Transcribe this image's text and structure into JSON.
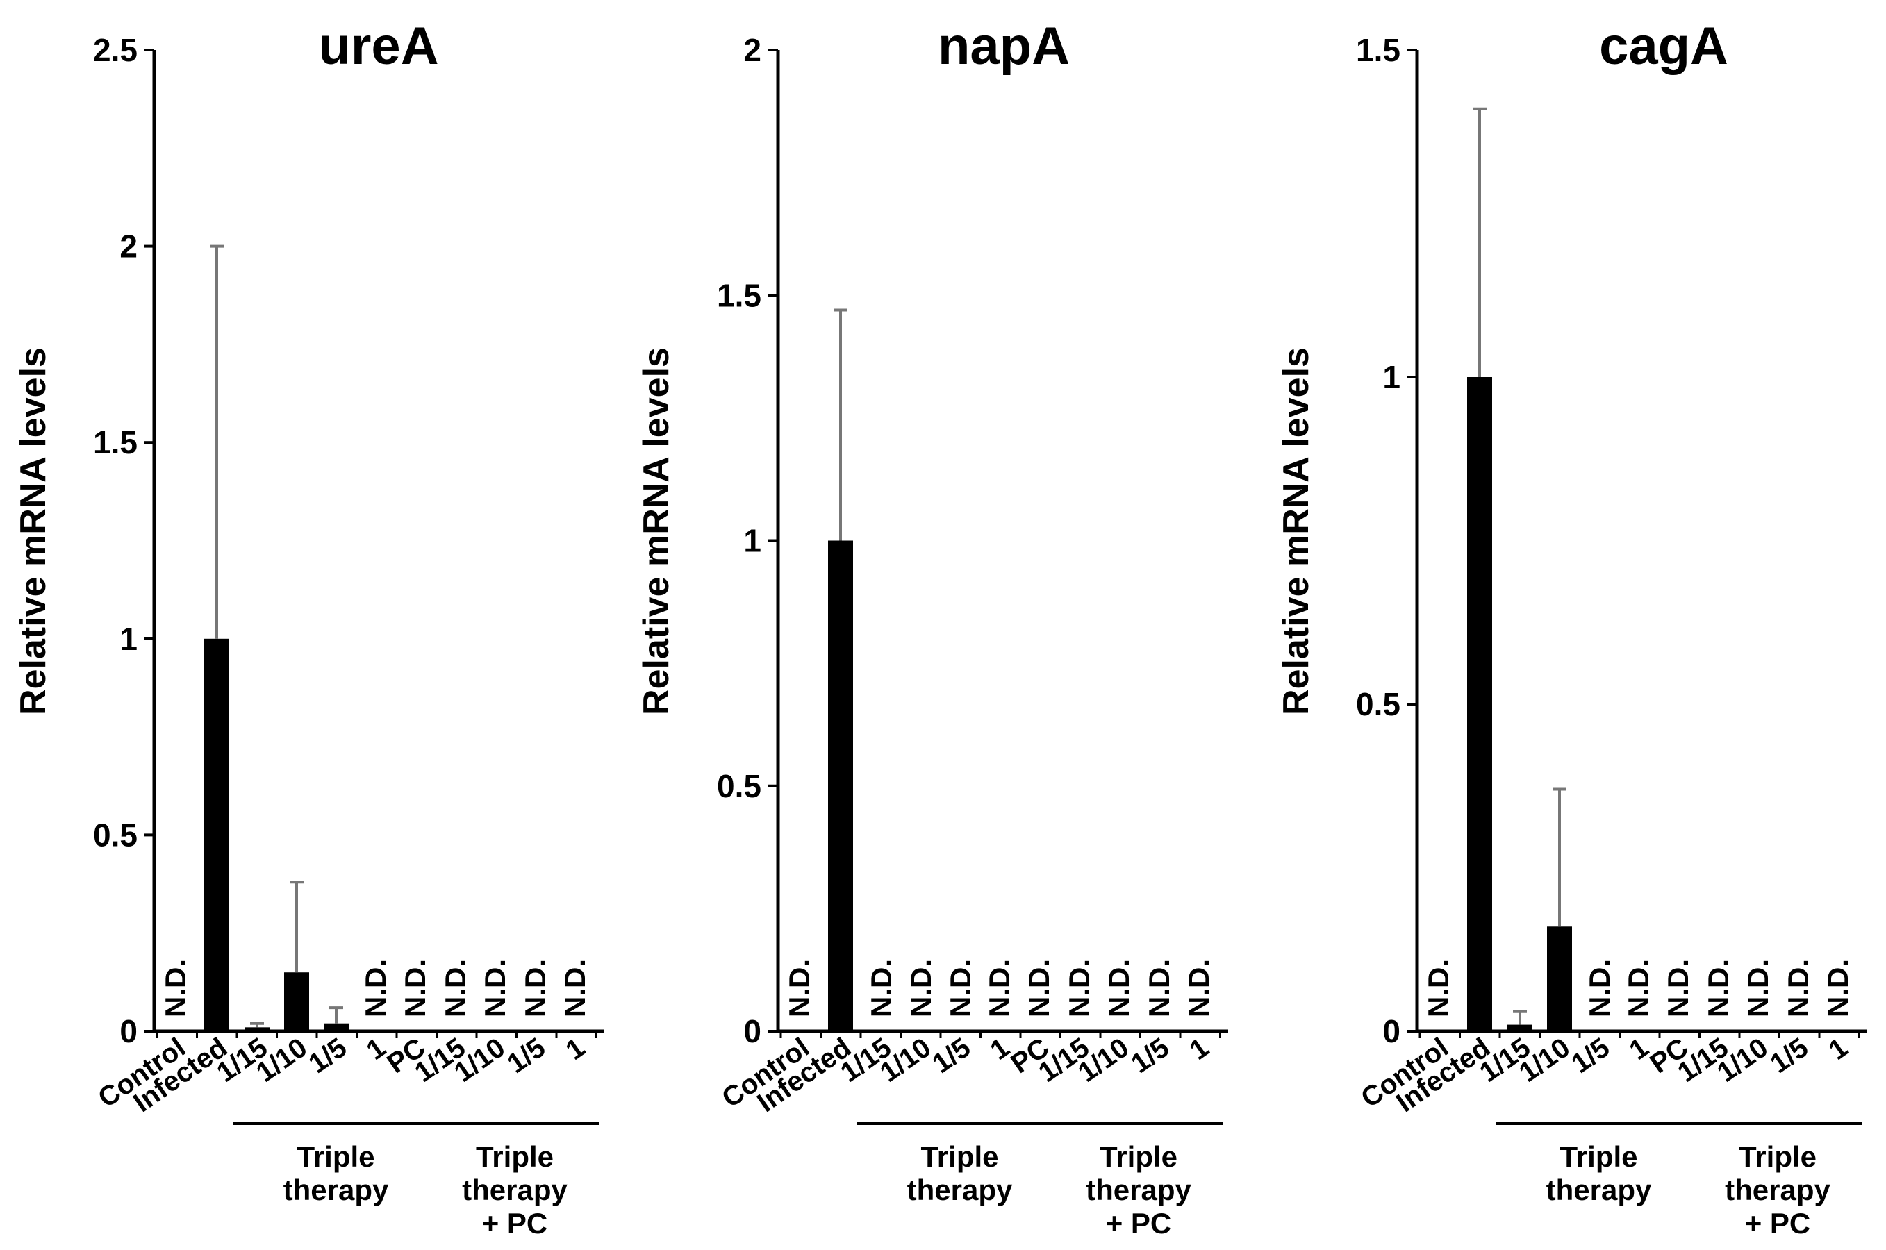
{
  "figure": {
    "y_axis_label": "Relative mRNA levels",
    "categories": [
      "Control",
      "Infected",
      "1/15",
      "1/10",
      "1/5",
      "1",
      "PC",
      "1/15",
      "1/10",
      "1/5",
      "1"
    ],
    "groups": [
      {
        "label_lines": [
          "Triple",
          "therapy"
        ]
      },
      {
        "label_lines": [
          "Triple",
          "therapy",
          "+ PC"
        ]
      }
    ],
    "nd_label": "N.D.",
    "bar_color": "#000000",
    "error_bar_color": "#777777"
  },
  "chart_data": [
    {
      "type": "bar",
      "title": "ureA",
      "ylabel": "Relative mRNA levels",
      "ylim": [
        0,
        2.5
      ],
      "yticks": [
        "0",
        "0.5",
        "1",
        "1.5",
        "2",
        "2.5"
      ],
      "categories": [
        "Control",
        "Infected",
        "1/15",
        "1/10",
        "1/5",
        "1",
        "PC",
        "1/15",
        "1/10",
        "1/5",
        "1"
      ],
      "values": [
        null,
        1.0,
        0.01,
        0.15,
        0.02,
        null,
        null,
        null,
        null,
        null,
        null
      ],
      "errors": [
        null,
        1.0,
        0.01,
        0.23,
        0.04,
        null,
        null,
        null,
        null,
        null,
        null
      ],
      "nd": [
        true,
        false,
        false,
        false,
        false,
        true,
        true,
        true,
        true,
        true,
        true
      ]
    },
    {
      "type": "bar",
      "title": "napA",
      "ylabel": "Relative mRNA levels",
      "ylim": [
        0,
        2
      ],
      "yticks": [
        "0",
        "0.5",
        "1",
        "1.5",
        "2"
      ],
      "categories": [
        "Control",
        "Infected",
        "1/15",
        "1/10",
        "1/5",
        "1",
        "PC",
        "1/15",
        "1/10",
        "1/5",
        "1"
      ],
      "values": [
        null,
        1.0,
        null,
        null,
        null,
        null,
        null,
        null,
        null,
        null,
        null
      ],
      "errors": [
        null,
        0.47,
        null,
        null,
        null,
        null,
        null,
        null,
        null,
        null,
        null
      ],
      "nd": [
        true,
        false,
        true,
        true,
        true,
        true,
        true,
        true,
        true,
        true,
        true
      ]
    },
    {
      "type": "bar",
      "title": "cagA",
      "ylabel": "Relative mRNA levels",
      "ylim": [
        0,
        1.5
      ],
      "yticks": [
        "0",
        "0.5",
        "1",
        "1.5"
      ],
      "categories": [
        "Control",
        "Infected",
        "1/15",
        "1/10",
        "1/5",
        "1",
        "PC",
        "1/15",
        "1/10",
        "1/5",
        "1"
      ],
      "values": [
        null,
        1.0,
        0.01,
        0.16,
        null,
        null,
        null,
        null,
        null,
        null,
        null
      ],
      "errors": [
        null,
        0.41,
        0.02,
        0.21,
        null,
        null,
        null,
        null,
        null,
        null,
        null
      ],
      "nd": [
        true,
        false,
        false,
        false,
        true,
        true,
        true,
        true,
        true,
        true,
        true
      ]
    }
  ]
}
